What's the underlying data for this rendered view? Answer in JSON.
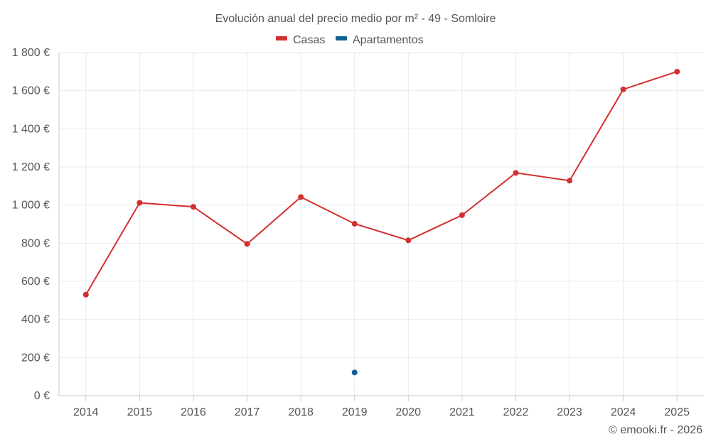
{
  "chart_data": {
    "type": "line",
    "title": "Evolución anual del precio medio por m² - 49 - Somloire",
    "categories": [
      "2014",
      "2015",
      "2016",
      "2017",
      "2018",
      "2019",
      "2020",
      "2021",
      "2022",
      "2023",
      "2024",
      "2025"
    ],
    "ylim": [
      0,
      1800
    ],
    "yticks": [
      0,
      200,
      400,
      600,
      800,
      1000,
      1200,
      1400,
      1600,
      1800
    ],
    "ytick_labels": [
      "0 €",
      "200 €",
      "400 €",
      "600 €",
      "800 €",
      "1 000 €",
      "1 200 €",
      "1 400 €",
      "1 600 €",
      "1 800 €"
    ],
    "grid": true,
    "legend_position": "top-center",
    "series": [
      {
        "name": "Casas",
        "color": "#d32f2f",
        "values": [
          530,
          1012,
          991,
          796,
          1042,
          902,
          815,
          947,
          1169,
          1128,
          1607,
          1700
        ]
      },
      {
        "name": "Apartamentos",
        "color": "#0d6293",
        "values": [
          null,
          null,
          null,
          null,
          null,
          122,
          null,
          null,
          null,
          null,
          null,
          null
        ]
      }
    ]
  },
  "credit": "© emooki.fr - 2026"
}
